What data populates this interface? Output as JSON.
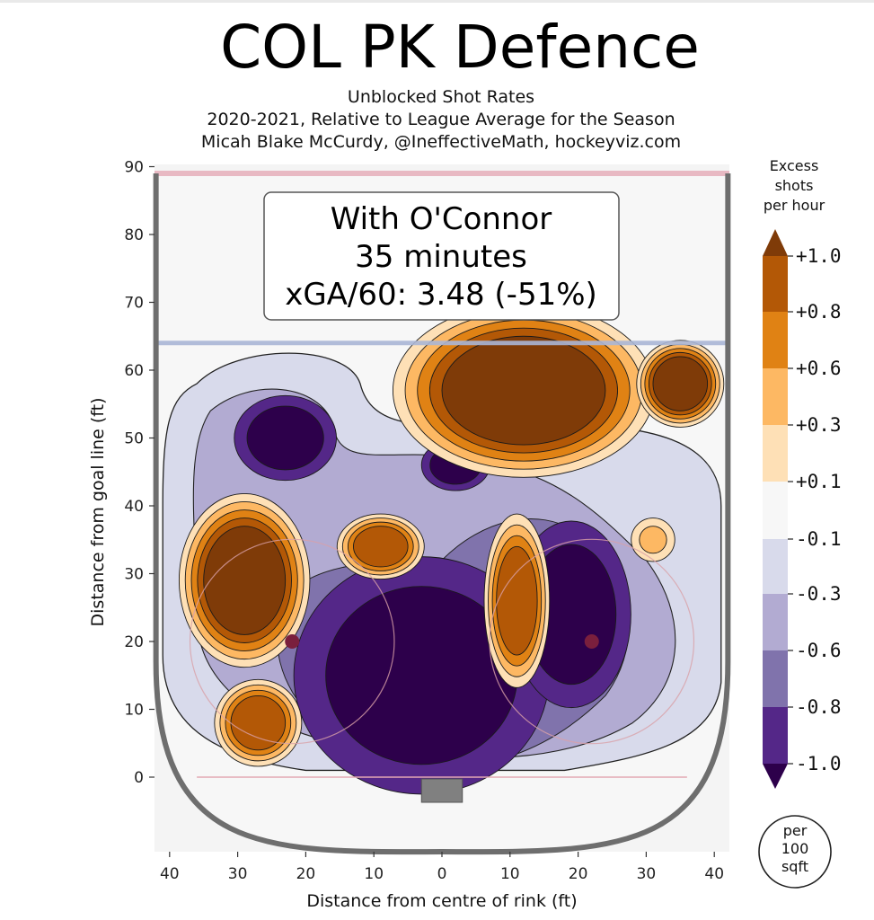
{
  "chart_data": {
    "type": "heatmap",
    "title": "COL PK Defence",
    "subtitle_lines": [
      "Unblocked Shot Rates",
      "2020-2021, Relative to League Average for the Season",
      "Micah Blake McCurdy, @IneffectiveMath, hockeyviz.com"
    ],
    "xlabel": "Distance from centre of rink (ft)",
    "ylabel": "Distance from goal line (ft)",
    "x_ticks": [
      "40",
      "30",
      "20",
      "10",
      "0",
      "10",
      "20",
      "30",
      "40"
    ],
    "y_ticks": [
      "90",
      "80",
      "70",
      "60",
      "50",
      "40",
      "30",
      "20",
      "10",
      "0"
    ],
    "xlim": [
      -42,
      42
    ],
    "ylim": [
      -11,
      90
    ],
    "info_box": [
      "With O'Connor",
      "35 minutes",
      "xGA/60: 3.48 (-51%)"
    ],
    "colorbar": {
      "title_lines": [
        "Excess",
        "shots",
        "per hour"
      ],
      "tick_labels": [
        "+1.0",
        "+0.8",
        "+0.6",
        "+0.3",
        "+0.1",
        "-0.1",
        "-0.3",
        "-0.6",
        "-0.8",
        "-1.0"
      ],
      "levels": [
        1.0,
        0.8,
        0.6,
        0.3,
        0.1,
        -0.1,
        -0.3,
        -0.6,
        -0.8,
        -1.0
      ],
      "colors": [
        "#7f3b08",
        "#b35806",
        "#e08214",
        "#fdb863",
        "#fee0b6",
        "#f7f7f7",
        "#d8daeb",
        "#b2abd2",
        "#8073ac",
        "#542788",
        "#2d004b"
      ]
    },
    "unit_badge_lines": [
      "per",
      "100",
      "sqft"
    ],
    "hotspots": [
      {
        "x": 12,
        "y": 57,
        "rx": 12,
        "ry": 8,
        "level": 1.0
      },
      {
        "x": 35,
        "y": 58,
        "rx": 4,
        "ry": 4,
        "level": 1.0
      },
      {
        "x": -29,
        "y": 29,
        "rx": 6,
        "ry": 8,
        "level": 1.0
      },
      {
        "x": -9,
        "y": 34,
        "rx": 4,
        "ry": 3,
        "level": 0.8
      },
      {
        "x": 11,
        "y": 26,
        "rx": 3,
        "ry": 8,
        "level": 0.8
      },
      {
        "x": -27,
        "y": 8,
        "rx": 4,
        "ry": 4,
        "level": 0.8
      },
      {
        "x": 31,
        "y": 35,
        "rx": 2,
        "ry": 2,
        "level": 0.3
      }
    ],
    "coldspots": [
      {
        "x": -3,
        "y": 15,
        "rx": 15,
        "ry": 14,
        "level": -1.0
      },
      {
        "x": 19,
        "y": 24,
        "rx": 7,
        "ry": 11,
        "level": -1.0
      },
      {
        "x": -23,
        "y": 50,
        "rx": 6,
        "ry": 5,
        "level": -1.0
      },
      {
        "x": 2,
        "y": 46,
        "rx": 4,
        "ry": 3,
        "level": -1.0
      }
    ]
  }
}
